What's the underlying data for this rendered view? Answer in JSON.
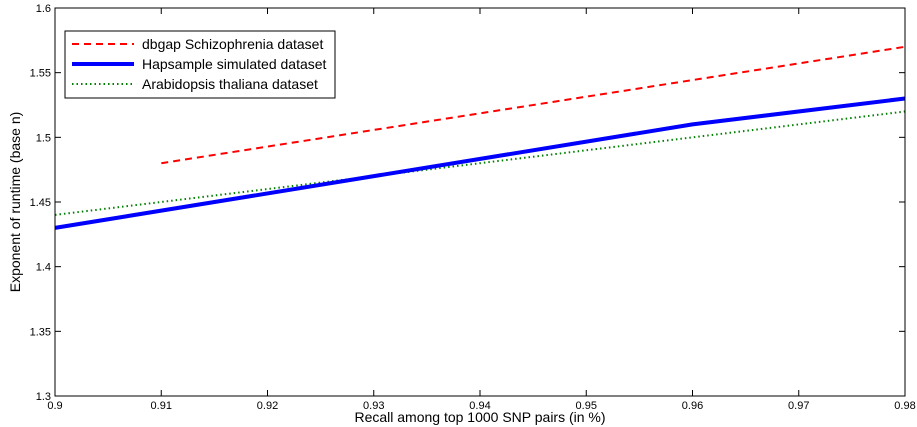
{
  "chart_data": {
    "type": "line",
    "title": "",
    "xlabel": "Recall among top 1000 SNP pairs (in %)",
    "ylabel": "Exponent of runtime (base n)",
    "xlim": [
      0.9,
      0.98
    ],
    "ylim": [
      1.3,
      1.6
    ],
    "x_ticks": [
      0.9,
      0.91,
      0.92,
      0.93,
      0.94,
      0.95,
      0.96,
      0.97,
      0.98
    ],
    "x_tick_labels": [
      "0.9",
      "0.91",
      "0.92",
      "0.93",
      "0.94",
      "0.95",
      "0.96",
      "0.97",
      "0.98"
    ],
    "y_ticks": [
      1.3,
      1.35,
      1.4,
      1.45,
      1.5,
      1.55,
      1.6
    ],
    "y_tick_labels": [
      "1.3",
      "1.35",
      "1.4",
      "1.45",
      "1.5",
      "1.55",
      "1.6"
    ],
    "grid": false,
    "legend_position": "top-left",
    "series": [
      {
        "name": "dbgap Schizophrenia dataset",
        "color": "#ff0000",
        "style": "dashed",
        "x": [
          0.91,
          0.98
        ],
        "y": [
          1.48,
          1.57
        ]
      },
      {
        "name": "Hapsample simulated dataset",
        "color": "#0000ff",
        "style": "solid-thick",
        "x": [
          0.9,
          0.96,
          0.98
        ],
        "y": [
          1.43,
          1.51,
          1.53
        ]
      },
      {
        "name": "Arabidopsis thaliana dataset",
        "color": "#008000",
        "style": "dotted",
        "x": [
          0.9,
          0.98
        ],
        "y": [
          1.44,
          1.52
        ]
      }
    ]
  }
}
